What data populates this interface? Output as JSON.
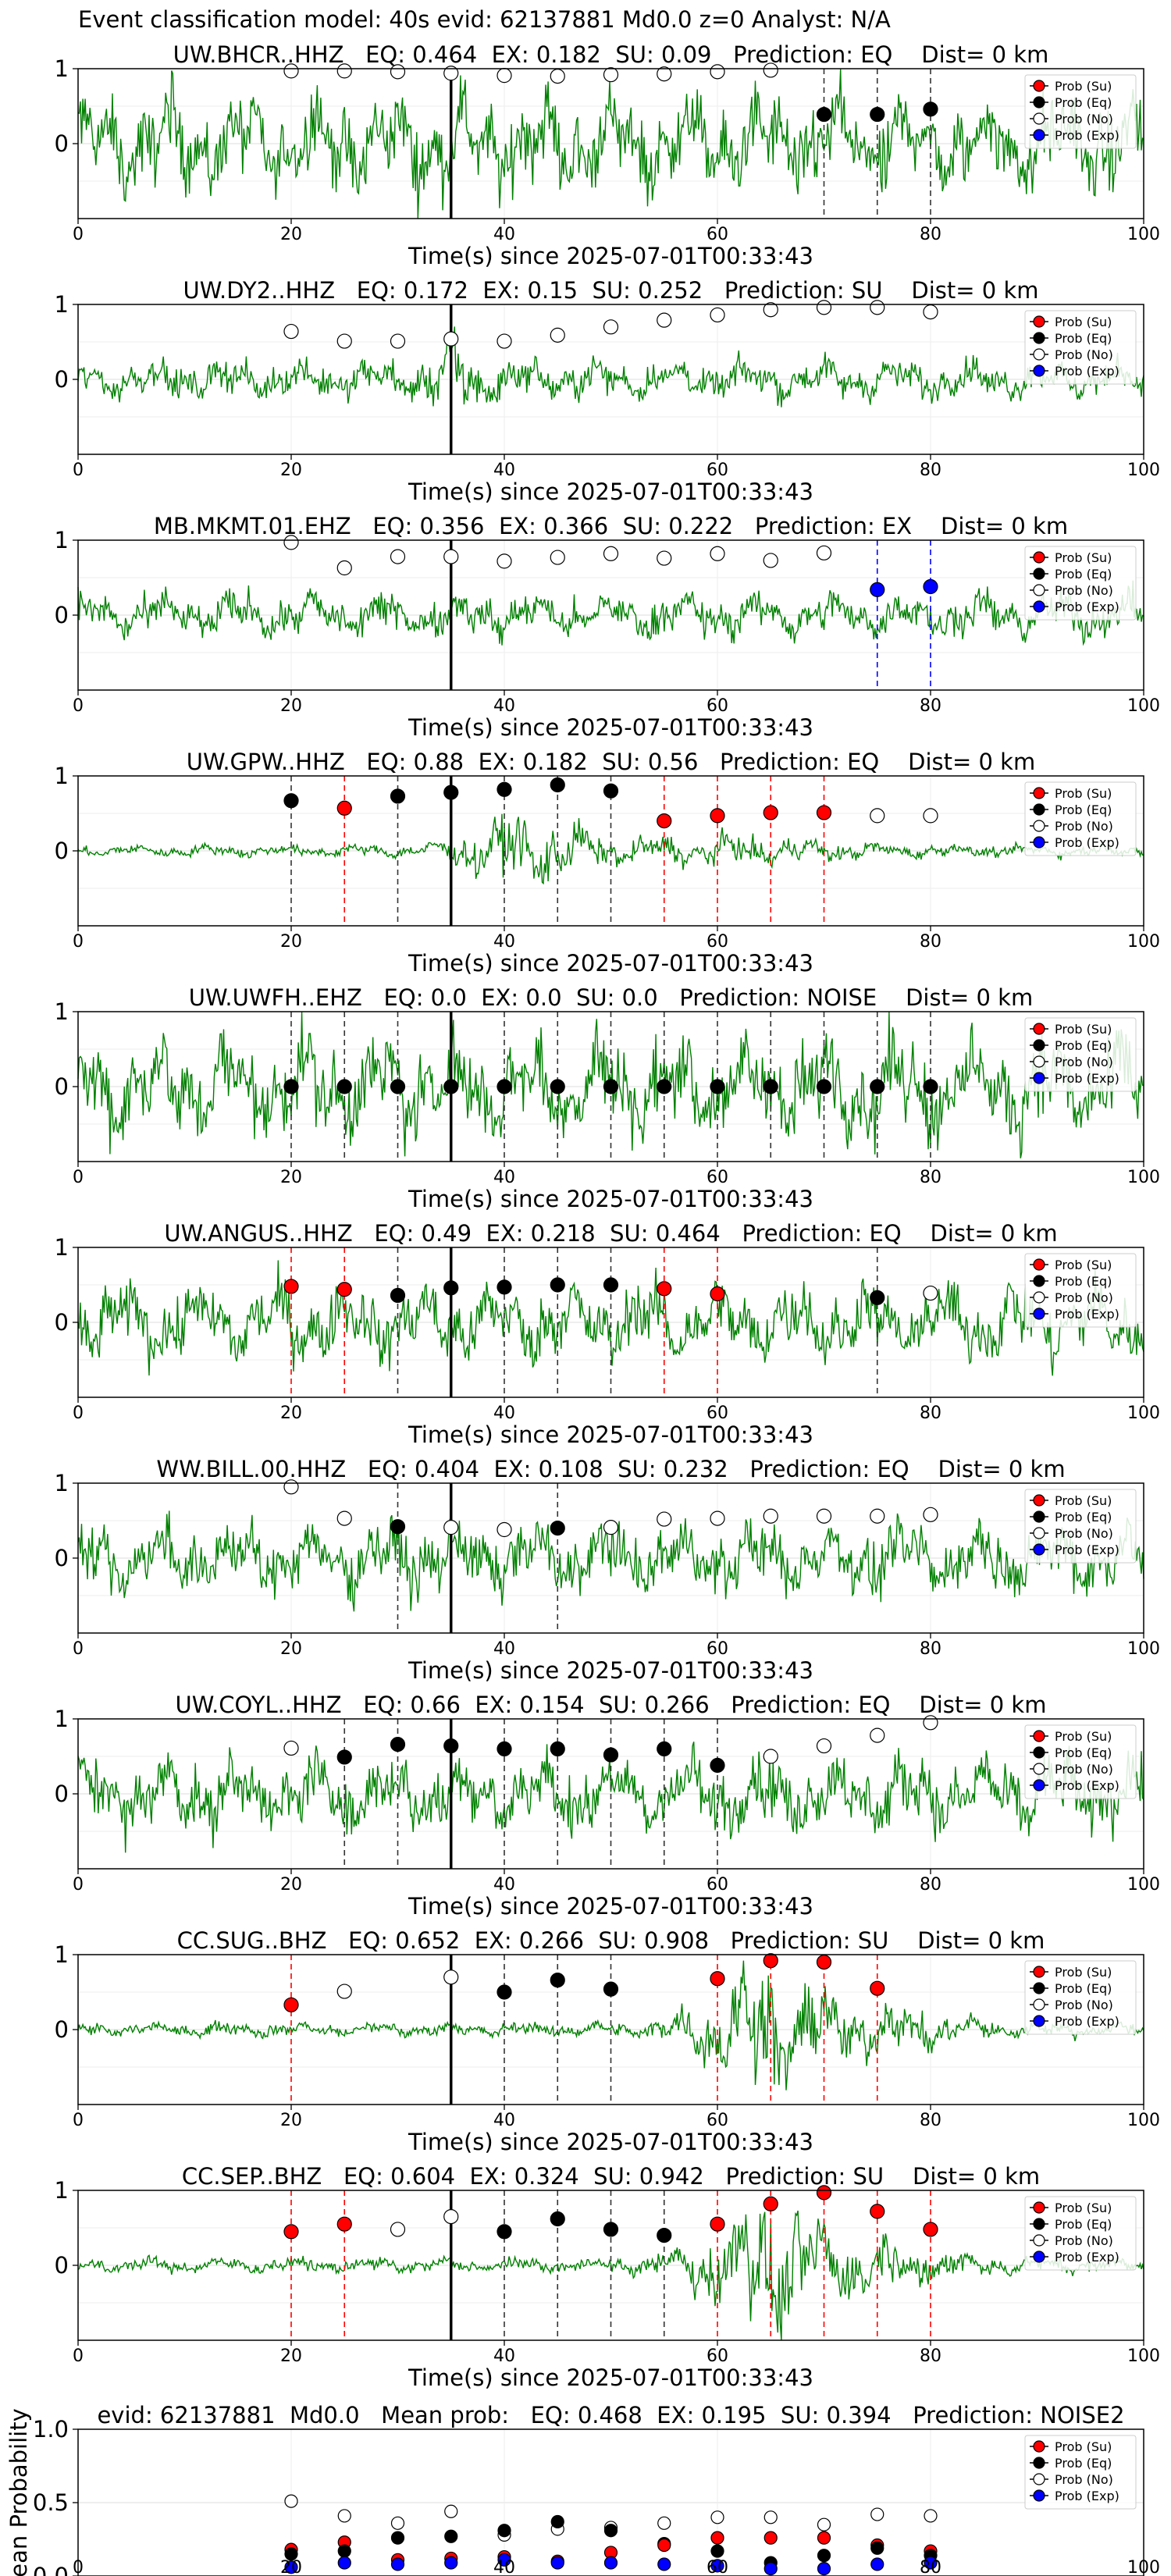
{
  "suptitle": "Event classification model: 40s evid: 62137881 Md0.0 z=0 Analyst: N/A",
  "common": {
    "xlabel": "Time(s) since 2025-07-01T00:33:43",
    "xlim": [
      0,
      100
    ],
    "xticks": [
      0,
      20,
      40,
      60,
      80,
      100
    ],
    "ylim": [
      -1,
      1
    ],
    "yticks": [
      0,
      1
    ],
    "grid": true,
    "legend_position": "top-right",
    "legend": [
      "Prob (Su)",
      "Prob (Eq)",
      "Prob (No)",
      "Prob (Exp)"
    ],
    "colors": {
      "su": "#ff0000",
      "eq": "#000000",
      "no": "#ffffff",
      "exp": "#0000ff",
      "trace": "#008000"
    }
  },
  "chart_data": [
    {
      "type": "line",
      "title": "UW.BHCR..HHZ   EQ: 0.464  EX: 0.182  SU: 0.09   Prediction: EQ    Dist= 0 km",
      "trace": "green-noise",
      "amplitude": 0.75,
      "event_line_x": 35,
      "points": [
        [
          20,
          "no",
          0.97
        ],
        [
          25,
          "no",
          0.97
        ],
        [
          30,
          "no",
          0.96
        ],
        [
          35,
          "no",
          0.94
        ],
        [
          40,
          "no",
          0.91
        ],
        [
          45,
          "no",
          0.9
        ],
        [
          50,
          "no",
          0.92
        ],
        [
          55,
          "no",
          0.93
        ],
        [
          60,
          "no",
          0.96
        ],
        [
          65,
          "no",
          0.98
        ],
        [
          70,
          "eq",
          0.39
        ],
        [
          75,
          "eq",
          0.39
        ],
        [
          80,
          "eq",
          0.46
        ]
      ],
      "vlines": [
        [
          70,
          "eq"
        ],
        [
          75,
          "eq"
        ],
        [
          80,
          "eq"
        ]
      ]
    },
    {
      "type": "line",
      "title": "UW.DY2..HHZ   EQ: 0.172  EX: 0.15  SU: 0.252   Prediction: SU    Dist= 0 km",
      "trace": "green-burst",
      "amplitude": 0.45,
      "event_line_x": 35,
      "points": [
        [
          20,
          "no",
          0.64
        ],
        [
          25,
          "no",
          0.51
        ],
        [
          30,
          "no",
          0.51
        ],
        [
          35,
          "no",
          0.54
        ],
        [
          40,
          "no",
          0.51
        ],
        [
          45,
          "no",
          0.59
        ],
        [
          50,
          "no",
          0.7
        ],
        [
          55,
          "no",
          0.79
        ],
        [
          60,
          "no",
          0.86
        ],
        [
          65,
          "no",
          0.93
        ],
        [
          70,
          "no",
          0.96
        ],
        [
          75,
          "no",
          0.96
        ],
        [
          80,
          "no",
          0.9
        ]
      ],
      "vlines": []
    },
    {
      "type": "line",
      "title": "MB.MKMT.01.EHZ   EQ: 0.356  EX: 0.366  SU: 0.222   Prediction: EX    Dist= 0 km",
      "trace": "green-noise",
      "amplitude": 0.35,
      "event_line_x": 35,
      "points": [
        [
          20,
          "no",
          0.97
        ],
        [
          25,
          "no",
          0.63
        ],
        [
          30,
          "no",
          0.78
        ],
        [
          35,
          "no",
          0.78
        ],
        [
          40,
          "no",
          0.72
        ],
        [
          45,
          "no",
          0.77
        ],
        [
          50,
          "no",
          0.82
        ],
        [
          55,
          "no",
          0.76
        ],
        [
          60,
          "no",
          0.82
        ],
        [
          65,
          "no",
          0.73
        ],
        [
          70,
          "no",
          0.83
        ],
        [
          75,
          "exp",
          0.34
        ],
        [
          80,
          "exp",
          0.38
        ]
      ],
      "vlines": [
        [
          75,
          "exp"
        ],
        [
          80,
          "exp"
        ]
      ]
    },
    {
      "type": "line",
      "title": "UW.GPW..HHZ   EQ: 0.88  EX: 0.182  SU: 0.56   Prediction: EQ    Dist= 0 km",
      "trace": "green-eq",
      "amplitude": 0.5,
      "event_line_x": 35,
      "points": [
        [
          20,
          "eq",
          0.67
        ],
        [
          25,
          "su",
          0.57
        ],
        [
          30,
          "eq",
          0.73
        ],
        [
          35,
          "eq",
          0.78
        ],
        [
          40,
          "eq",
          0.82
        ],
        [
          45,
          "eq",
          0.88
        ],
        [
          50,
          "eq",
          0.8
        ],
        [
          55,
          "su",
          0.4
        ],
        [
          60,
          "su",
          0.47
        ],
        [
          65,
          "su",
          0.51
        ],
        [
          70,
          "su",
          0.51
        ],
        [
          75,
          "no",
          0.47
        ],
        [
          80,
          "no",
          0.47
        ]
      ],
      "vlines": [
        [
          20,
          "eq"
        ],
        [
          25,
          "su"
        ],
        [
          30,
          "eq"
        ],
        [
          40,
          "eq"
        ],
        [
          45,
          "eq"
        ],
        [
          50,
          "eq"
        ],
        [
          55,
          "su"
        ],
        [
          60,
          "su"
        ],
        [
          65,
          "su"
        ],
        [
          70,
          "su"
        ]
      ]
    },
    {
      "type": "line",
      "title": "UW.UWFH..EHZ   EQ: 0.0  EX: 0.0  SU: 0.0   Prediction: NOISE    Dist= 0 km",
      "trace": "green-noise",
      "amplitude": 0.8,
      "event_line_x": 35,
      "points": [
        [
          20,
          "eq",
          0.0
        ],
        [
          25,
          "eq",
          0.0
        ],
        [
          30,
          "eq",
          0.0
        ],
        [
          35,
          "eq",
          0.0
        ],
        [
          40,
          "eq",
          0.0
        ],
        [
          45,
          "eq",
          0.0
        ],
        [
          50,
          "eq",
          0.0
        ],
        [
          55,
          "eq",
          0.0
        ],
        [
          60,
          "eq",
          0.0
        ],
        [
          65,
          "eq",
          0.0
        ],
        [
          70,
          "eq",
          0.0
        ],
        [
          75,
          "eq",
          0.0
        ],
        [
          80,
          "eq",
          0.0
        ]
      ],
      "vlines": [
        [
          20,
          "eq"
        ],
        [
          25,
          "eq"
        ],
        [
          30,
          "eq"
        ],
        [
          40,
          "eq"
        ],
        [
          45,
          "eq"
        ],
        [
          50,
          "eq"
        ],
        [
          55,
          "eq"
        ],
        [
          60,
          "eq"
        ],
        [
          65,
          "eq"
        ],
        [
          70,
          "eq"
        ],
        [
          75,
          "eq"
        ],
        [
          80,
          "eq"
        ]
      ]
    },
    {
      "type": "line",
      "title": "UW.ANGUS..HHZ   EQ: 0.49  EX: 0.218  SU: 0.464   Prediction: EQ    Dist= 0 km",
      "trace": "green-noise",
      "amplitude": 0.6,
      "event_line_x": 35,
      "points": [
        [
          20,
          "su",
          0.48
        ],
        [
          25,
          "su",
          0.44
        ],
        [
          30,
          "eq",
          0.36
        ],
        [
          35,
          "eq",
          0.46
        ],
        [
          40,
          "eq",
          0.47
        ],
        [
          45,
          "eq",
          0.5
        ],
        [
          50,
          "eq",
          0.5
        ],
        [
          55,
          "su",
          0.45
        ],
        [
          60,
          "su",
          0.38
        ],
        [
          75,
          "eq",
          0.33
        ],
        [
          80,
          "no",
          0.39
        ]
      ],
      "vlines": [
        [
          20,
          "su"
        ],
        [
          25,
          "su"
        ],
        [
          30,
          "eq"
        ],
        [
          40,
          "eq"
        ],
        [
          45,
          "eq"
        ],
        [
          50,
          "eq"
        ],
        [
          55,
          "su"
        ],
        [
          60,
          "su"
        ],
        [
          75,
          "eq"
        ]
      ]
    },
    {
      "type": "line",
      "title": "WW.BILL.00.HHZ   EQ: 0.404  EX: 0.108  SU: 0.232   Prediction: EQ    Dist= 0 km",
      "trace": "green-noise",
      "amplitude": 0.55,
      "event_line_x": 35,
      "points": [
        [
          20,
          "no",
          0.95
        ],
        [
          25,
          "no",
          0.53
        ],
        [
          30,
          "eq",
          0.42
        ],
        [
          35,
          "no",
          0.41
        ],
        [
          40,
          "no",
          0.38
        ],
        [
          45,
          "eq",
          0.4
        ],
        [
          50,
          "no",
          0.41
        ],
        [
          55,
          "no",
          0.52
        ],
        [
          60,
          "no",
          0.53
        ],
        [
          65,
          "no",
          0.56
        ],
        [
          70,
          "no",
          0.56
        ],
        [
          75,
          "no",
          0.56
        ],
        [
          80,
          "no",
          0.58
        ]
      ],
      "vlines": [
        [
          30,
          "eq"
        ],
        [
          45,
          "eq"
        ]
      ]
    },
    {
      "type": "line",
      "title": "UW.COYL..HHZ   EQ: 0.66  EX: 0.154  SU: 0.266   Prediction: EQ    Dist= 0 km",
      "trace": "green-noise",
      "amplitude": 0.6,
      "event_line_x": 35,
      "points": [
        [
          20,
          "no",
          0.61
        ],
        [
          25,
          "eq",
          0.49
        ],
        [
          30,
          "eq",
          0.66
        ],
        [
          35,
          "eq",
          0.64
        ],
        [
          40,
          "eq",
          0.6
        ],
        [
          45,
          "eq",
          0.6
        ],
        [
          50,
          "eq",
          0.52
        ],
        [
          55,
          "eq",
          0.6
        ],
        [
          60,
          "eq",
          0.38
        ],
        [
          65,
          "no",
          0.5
        ],
        [
          70,
          "no",
          0.64
        ],
        [
          75,
          "no",
          0.78
        ],
        [
          80,
          "no",
          0.95
        ]
      ],
      "vlines": [
        [
          25,
          "eq"
        ],
        [
          30,
          "eq"
        ],
        [
          40,
          "eq"
        ],
        [
          45,
          "eq"
        ],
        [
          50,
          "eq"
        ],
        [
          55,
          "eq"
        ],
        [
          60,
          "eq"
        ]
      ]
    },
    {
      "type": "line",
      "title": "CC.SUG..BHZ   EQ: 0.652  EX: 0.266  SU: 0.908   Prediction: SU    Dist= 0 km",
      "trace": "green-su",
      "amplitude": 0.9,
      "event_line_x": 35,
      "points": [
        [
          20,
          "su",
          0.33
        ],
        [
          25,
          "no",
          0.51
        ],
        [
          35,
          "no",
          0.7
        ],
        [
          40,
          "eq",
          0.5
        ],
        [
          45,
          "eq",
          0.66
        ],
        [
          50,
          "eq",
          0.54
        ],
        [
          60,
          "su",
          0.68
        ],
        [
          65,
          "su",
          0.92
        ],
        [
          70,
          "su",
          0.9
        ],
        [
          75,
          "su",
          0.55
        ]
      ],
      "vlines": [
        [
          20,
          "su"
        ],
        [
          40,
          "eq"
        ],
        [
          45,
          "eq"
        ],
        [
          50,
          "eq"
        ],
        [
          60,
          "su"
        ],
        [
          65,
          "su"
        ],
        [
          70,
          "su"
        ],
        [
          75,
          "su"
        ]
      ]
    },
    {
      "type": "line",
      "title": "CC.SEP..BHZ   EQ: 0.604  EX: 0.324  SU: 0.942   Prediction: SU    Dist= 0 km",
      "trace": "green-su",
      "amplitude": 0.95,
      "event_line_x": 35,
      "points": [
        [
          20,
          "su",
          0.45
        ],
        [
          25,
          "su",
          0.55
        ],
        [
          30,
          "no",
          0.48
        ],
        [
          35,
          "no",
          0.65
        ],
        [
          40,
          "eq",
          0.45
        ],
        [
          45,
          "eq",
          0.62
        ],
        [
          50,
          "eq",
          0.48
        ],
        [
          55,
          "eq",
          0.4
        ],
        [
          60,
          "su",
          0.55
        ],
        [
          65,
          "su",
          0.82
        ],
        [
          70,
          "su",
          0.97
        ],
        [
          75,
          "su",
          0.72
        ],
        [
          80,
          "su",
          0.48
        ]
      ],
      "vlines": [
        [
          20,
          "su"
        ],
        [
          25,
          "su"
        ],
        [
          40,
          "eq"
        ],
        [
          45,
          "eq"
        ],
        [
          50,
          "eq"
        ],
        [
          55,
          "eq"
        ],
        [
          60,
          "su"
        ],
        [
          65,
          "su"
        ],
        [
          70,
          "su"
        ],
        [
          75,
          "su"
        ],
        [
          80,
          "su"
        ]
      ]
    },
    {
      "type": "scatter",
      "title": "evid: 62137881  Md0.0   Mean prob:   EQ: 0.468  EX: 0.195  SU: 0.394   Prediction: NOISE2",
      "ylabel": "Mean Probability",
      "ylim": [
        0,
        1
      ],
      "yticks": [
        0.0,
        0.5,
        1.0
      ],
      "points": [
        [
          20,
          "no",
          0.51
        ],
        [
          20,
          "su",
          0.18
        ],
        [
          20,
          "eq",
          0.15
        ],
        [
          20,
          "exp",
          0.06
        ],
        [
          25,
          "no",
          0.41
        ],
        [
          25,
          "su",
          0.23
        ],
        [
          25,
          "eq",
          0.17
        ],
        [
          25,
          "exp",
          0.09
        ],
        [
          30,
          "no",
          0.36
        ],
        [
          30,
          "eq",
          0.26
        ],
        [
          30,
          "su",
          0.11
        ],
        [
          30,
          "exp",
          0.08
        ],
        [
          35,
          "no",
          0.44
        ],
        [
          35,
          "eq",
          0.27
        ],
        [
          35,
          "su",
          0.12
        ],
        [
          35,
          "exp",
          0.09
        ],
        [
          40,
          "no",
          0.28
        ],
        [
          40,
          "eq",
          0.31
        ],
        [
          40,
          "su",
          0.13
        ],
        [
          40,
          "exp",
          0.11
        ],
        [
          45,
          "no",
          0.32
        ],
        [
          45,
          "eq",
          0.37
        ],
        [
          45,
          "su",
          0.1
        ],
        [
          45,
          "exp",
          0.09
        ],
        [
          50,
          "no",
          0.33
        ],
        [
          50,
          "eq",
          0.31
        ],
        [
          50,
          "su",
          0.16
        ],
        [
          50,
          "exp",
          0.09
        ],
        [
          55,
          "no",
          0.36
        ],
        [
          55,
          "eq",
          0.22
        ],
        [
          55,
          "su",
          0.21
        ],
        [
          55,
          "exp",
          0.08
        ],
        [
          60,
          "no",
          0.4
        ],
        [
          60,
          "su",
          0.26
        ],
        [
          60,
          "eq",
          0.17
        ],
        [
          60,
          "exp",
          0.07
        ],
        [
          65,
          "no",
          0.4
        ],
        [
          65,
          "su",
          0.26
        ],
        [
          65,
          "eq",
          0.09
        ],
        [
          65,
          "exp",
          0.05
        ],
        [
          70,
          "no",
          0.35
        ],
        [
          70,
          "su",
          0.26
        ],
        [
          70,
          "eq",
          0.14
        ],
        [
          70,
          "exp",
          0.05
        ],
        [
          75,
          "no",
          0.42
        ],
        [
          75,
          "su",
          0.21
        ],
        [
          75,
          "eq",
          0.19
        ],
        [
          75,
          "exp",
          0.08
        ],
        [
          80,
          "no",
          0.41
        ],
        [
          80,
          "su",
          0.17
        ],
        [
          80,
          "eq",
          0.14
        ],
        [
          80,
          "exp",
          0.09
        ]
      ],
      "vlines": []
    }
  ]
}
